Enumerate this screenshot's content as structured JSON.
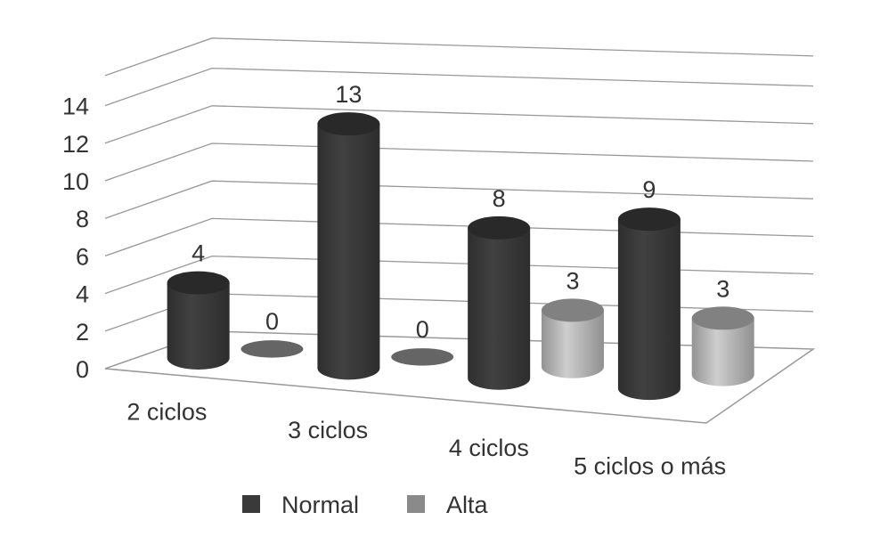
{
  "chart_data": {
    "type": "bar",
    "style": "3d-cylinder",
    "categories": [
      "2 ciclos",
      "3 ciclos",
      "4 ciclos",
      "5 ciclos o más"
    ],
    "series": [
      {
        "name": "Normal",
        "values": [
          4,
          13,
          8,
          9
        ],
        "color": "#3a3a3a"
      },
      {
        "name": "Alta",
        "values": [
          0,
          0,
          3,
          3
        ],
        "color": "#b8b8b8"
      }
    ],
    "ylim": [
      0,
      14
    ],
    "yticks": [
      0,
      2,
      4,
      6,
      8,
      10,
      12,
      14
    ],
    "grid": true,
    "legend": "bottom",
    "colors": {
      "normal": "#3a3a3a",
      "alta": "#b8b8b8",
      "alta_legend": "#8a8a8a",
      "grid": "#999999"
    }
  }
}
